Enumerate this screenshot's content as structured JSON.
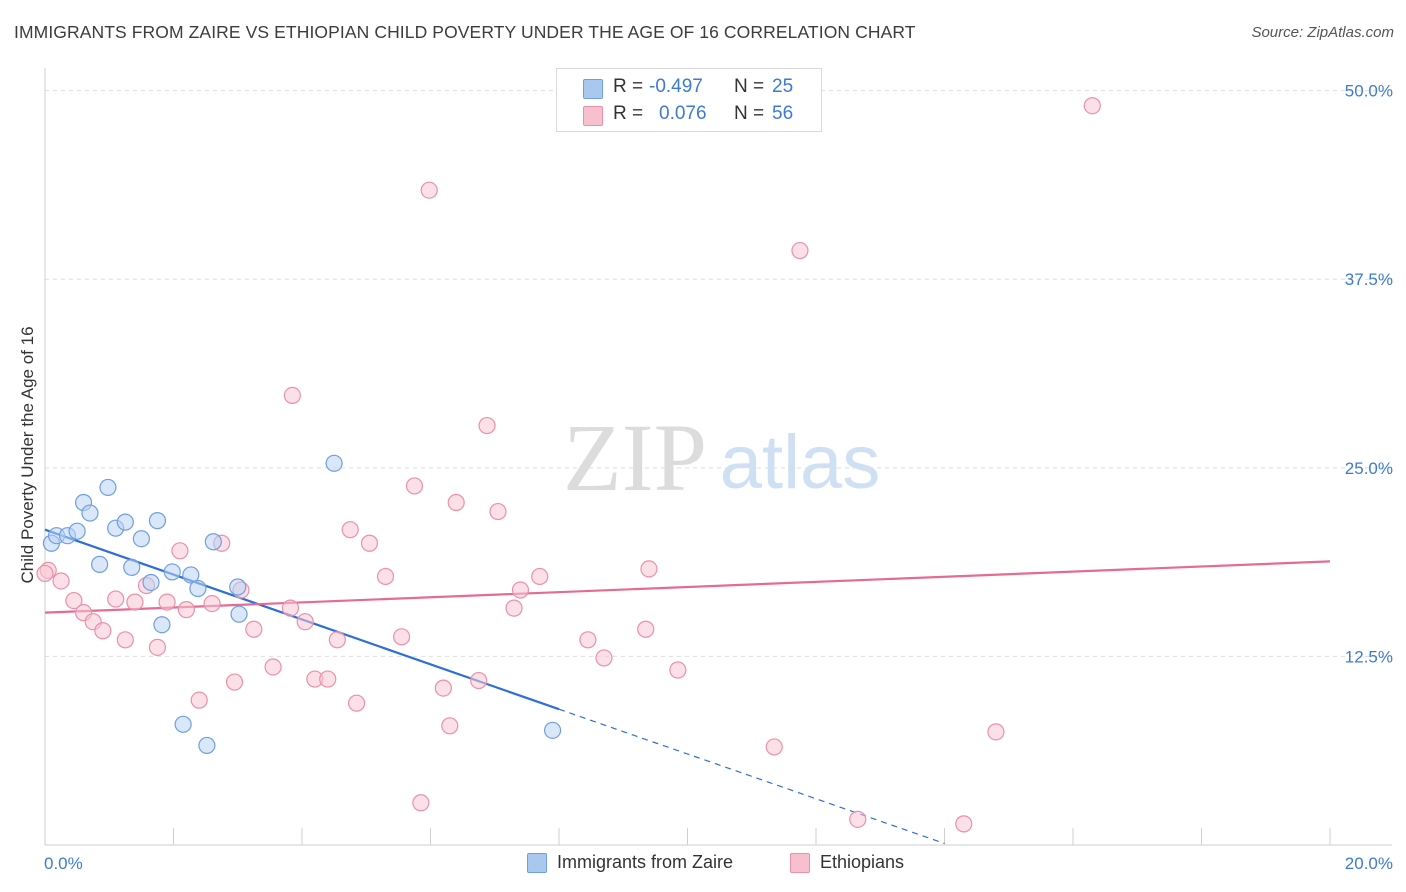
{
  "title": "IMMIGRANTS FROM ZAIRE VS ETHIOPIAN CHILD POVERTY UNDER THE AGE OF 16 CORRELATION CHART",
  "source": "Source: ZipAtlas.com",
  "watermark": {
    "zip": "ZIP",
    "atlas": "atlas"
  },
  "legend_stats": [
    {
      "r_label": "R =",
      "r_value": "-0.497",
      "n_label": "N =",
      "n_value": "25",
      "color": "#a9c8ef",
      "border": "#6f9fe0"
    },
    {
      "r_label": "R =",
      "r_value": "0.076",
      "n_label": "N =",
      "n_value": "56",
      "color": "#f7c0cf",
      "border": "#ec8fab"
    }
  ],
  "chart_data": {
    "type": "scatter",
    "title": "IMMIGRANTS FROM ZAIRE VS ETHIOPIAN CHILD POVERTY UNDER THE AGE OF 16 CORRELATION CHART",
    "xlabel": "",
    "ylabel": "Child Poverty Under the Age of 16",
    "xlim": [
      0,
      20
    ],
    "ylim": [
      0,
      51.5
    ],
    "x_tick_labels": [
      "0.0%",
      "20.0%"
    ],
    "y_ticks": [
      12.5,
      25.0,
      37.5,
      50.0
    ],
    "y_tick_labels": [
      "12.5%",
      "25.0%",
      "37.5%",
      "50.0%"
    ],
    "grid": true,
    "series": [
      {
        "name": "Immigrants from Zaire",
        "color": "#6f9fe0",
        "fill": "#b9d4f4",
        "line_color": "#2d6fd6",
        "trend": {
          "x0": 0,
          "y0": 20.9,
          "x1": 8.0,
          "y1": 9.0,
          "dash_to_x": 14.0,
          "dash_to_y": 0.1
        },
        "points": [
          [
            0.1,
            20.0
          ],
          [
            0.18,
            20.5
          ],
          [
            0.35,
            20.5
          ],
          [
            0.5,
            20.8
          ],
          [
            0.6,
            22.7
          ],
          [
            0.7,
            22.0
          ],
          [
            0.85,
            18.6
          ],
          [
            0.98,
            23.7
          ],
          [
            1.1,
            21.0
          ],
          [
            1.25,
            21.4
          ],
          [
            1.35,
            18.4
          ],
          [
            1.5,
            20.3
          ],
          [
            1.65,
            17.4
          ],
          [
            1.75,
            21.5
          ],
          [
            1.82,
            14.6
          ],
          [
            1.98,
            18.1
          ],
          [
            2.15,
            8.0
          ],
          [
            2.27,
            17.9
          ],
          [
            2.38,
            17.0
          ],
          [
            2.52,
            6.6
          ],
          [
            2.62,
            20.1
          ],
          [
            3.0,
            17.1
          ],
          [
            3.02,
            15.3
          ],
          [
            4.5,
            25.3
          ],
          [
            7.9,
            7.6
          ]
        ]
      },
      {
        "name": "Ethiopians",
        "color": "#ec8fab",
        "fill": "#f8c6d4",
        "line_color": "#e56b93",
        "trend": {
          "x0": 0,
          "y0": 15.4,
          "x1": 20,
          "y1": 18.8
        },
        "points": [
          [
            0.05,
            18.2
          ],
          [
            0.25,
            17.5
          ],
          [
            0.45,
            16.2
          ],
          [
            0.6,
            15.4
          ],
          [
            0.75,
            14.8
          ],
          [
            0.9,
            14.2
          ],
          [
            1.1,
            16.3
          ],
          [
            1.25,
            13.6
          ],
          [
            1.4,
            16.1
          ],
          [
            1.58,
            17.2
          ],
          [
            1.75,
            13.1
          ],
          [
            1.9,
            16.1
          ],
          [
            2.1,
            19.5
          ],
          [
            2.2,
            15.6
          ],
          [
            2.4,
            9.6
          ],
          [
            2.6,
            16.0
          ],
          [
            2.75,
            20.0
          ],
          [
            2.95,
            10.8
          ],
          [
            3.05,
            16.9
          ],
          [
            3.25,
            14.3
          ],
          [
            3.55,
            11.8
          ],
          [
            3.82,
            15.7
          ],
          [
            3.85,
            29.8
          ],
          [
            4.05,
            14.8
          ],
          [
            4.2,
            11.0
          ],
          [
            4.4,
            11.0
          ],
          [
            4.55,
            13.6
          ],
          [
            4.75,
            20.9
          ],
          [
            4.85,
            9.4
          ],
          [
            5.05,
            20.0
          ],
          [
            5.3,
            17.8
          ],
          [
            5.55,
            13.8
          ],
          [
            5.75,
            23.8
          ],
          [
            5.85,
            2.8
          ],
          [
            5.98,
            43.4
          ],
          [
            6.2,
            10.4
          ],
          [
            6.3,
            7.9
          ],
          [
            6.4,
            22.7
          ],
          [
            6.75,
            10.9
          ],
          [
            6.88,
            27.8
          ],
          [
            7.05,
            22.1
          ],
          [
            7.3,
            15.7
          ],
          [
            7.4,
            16.9
          ],
          [
            7.7,
            17.8
          ],
          [
            8.45,
            13.6
          ],
          [
            8.7,
            12.4
          ],
          [
            9.35,
            14.3
          ],
          [
            9.4,
            18.3
          ],
          [
            9.85,
            11.6
          ],
          [
            11.35,
            6.5
          ],
          [
            11.75,
            39.4
          ],
          [
            12.65,
            1.7
          ],
          [
            14.3,
            1.4
          ],
          [
            14.8,
            7.5
          ],
          [
            16.3,
            49.0
          ],
          [
            0.0,
            18.0
          ]
        ]
      }
    ]
  }
}
